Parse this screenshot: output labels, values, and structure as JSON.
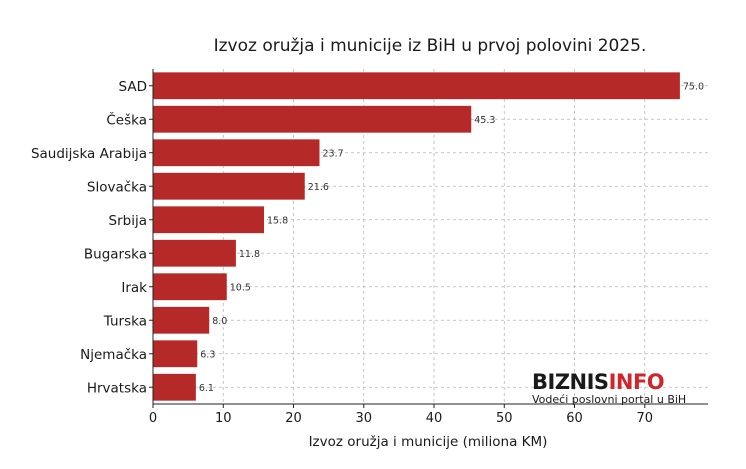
{
  "chart_data": {
    "type": "bar",
    "orientation": "horizontal",
    "title": "Izvoz oružja i municije iz BiH u prvoj polovini 2025.",
    "xlabel": "Izvoz oružja i municije (miliona KM)",
    "ylabel": "",
    "categories": [
      "SAD",
      "Češka",
      "Saudijska Arabija",
      "Slovačka",
      "Srbija",
      "Bugarska",
      "Irak",
      "Turska",
      "Njemačka",
      "Hrvatska"
    ],
    "values": [
      75.0,
      45.3,
      23.7,
      21.6,
      15.8,
      11.8,
      10.5,
      8.0,
      6.3,
      6.1
    ],
    "value_labels": [
      "75.0",
      "45.3",
      "23.7",
      "21.6",
      "15.8",
      "11.8",
      "10.5",
      "8.0",
      "6.3",
      "6.1"
    ],
    "xlim": [
      0,
      79
    ],
    "xticks": [
      0,
      10,
      20,
      30,
      40,
      50,
      60,
      70
    ],
    "xtick_labels": [
      "0",
      "10",
      "20",
      "30",
      "40",
      "50",
      "60",
      "70"
    ],
    "grid": true,
    "bar_color": "#b52a29"
  },
  "watermark": {
    "brand_part1": "BIZNIS",
    "brand_part2": "INFO",
    "tagline": "Vodeći poslovni portal u BiH",
    "color_dark": "#1a1a1a",
    "color_accent": "#d0262b"
  }
}
